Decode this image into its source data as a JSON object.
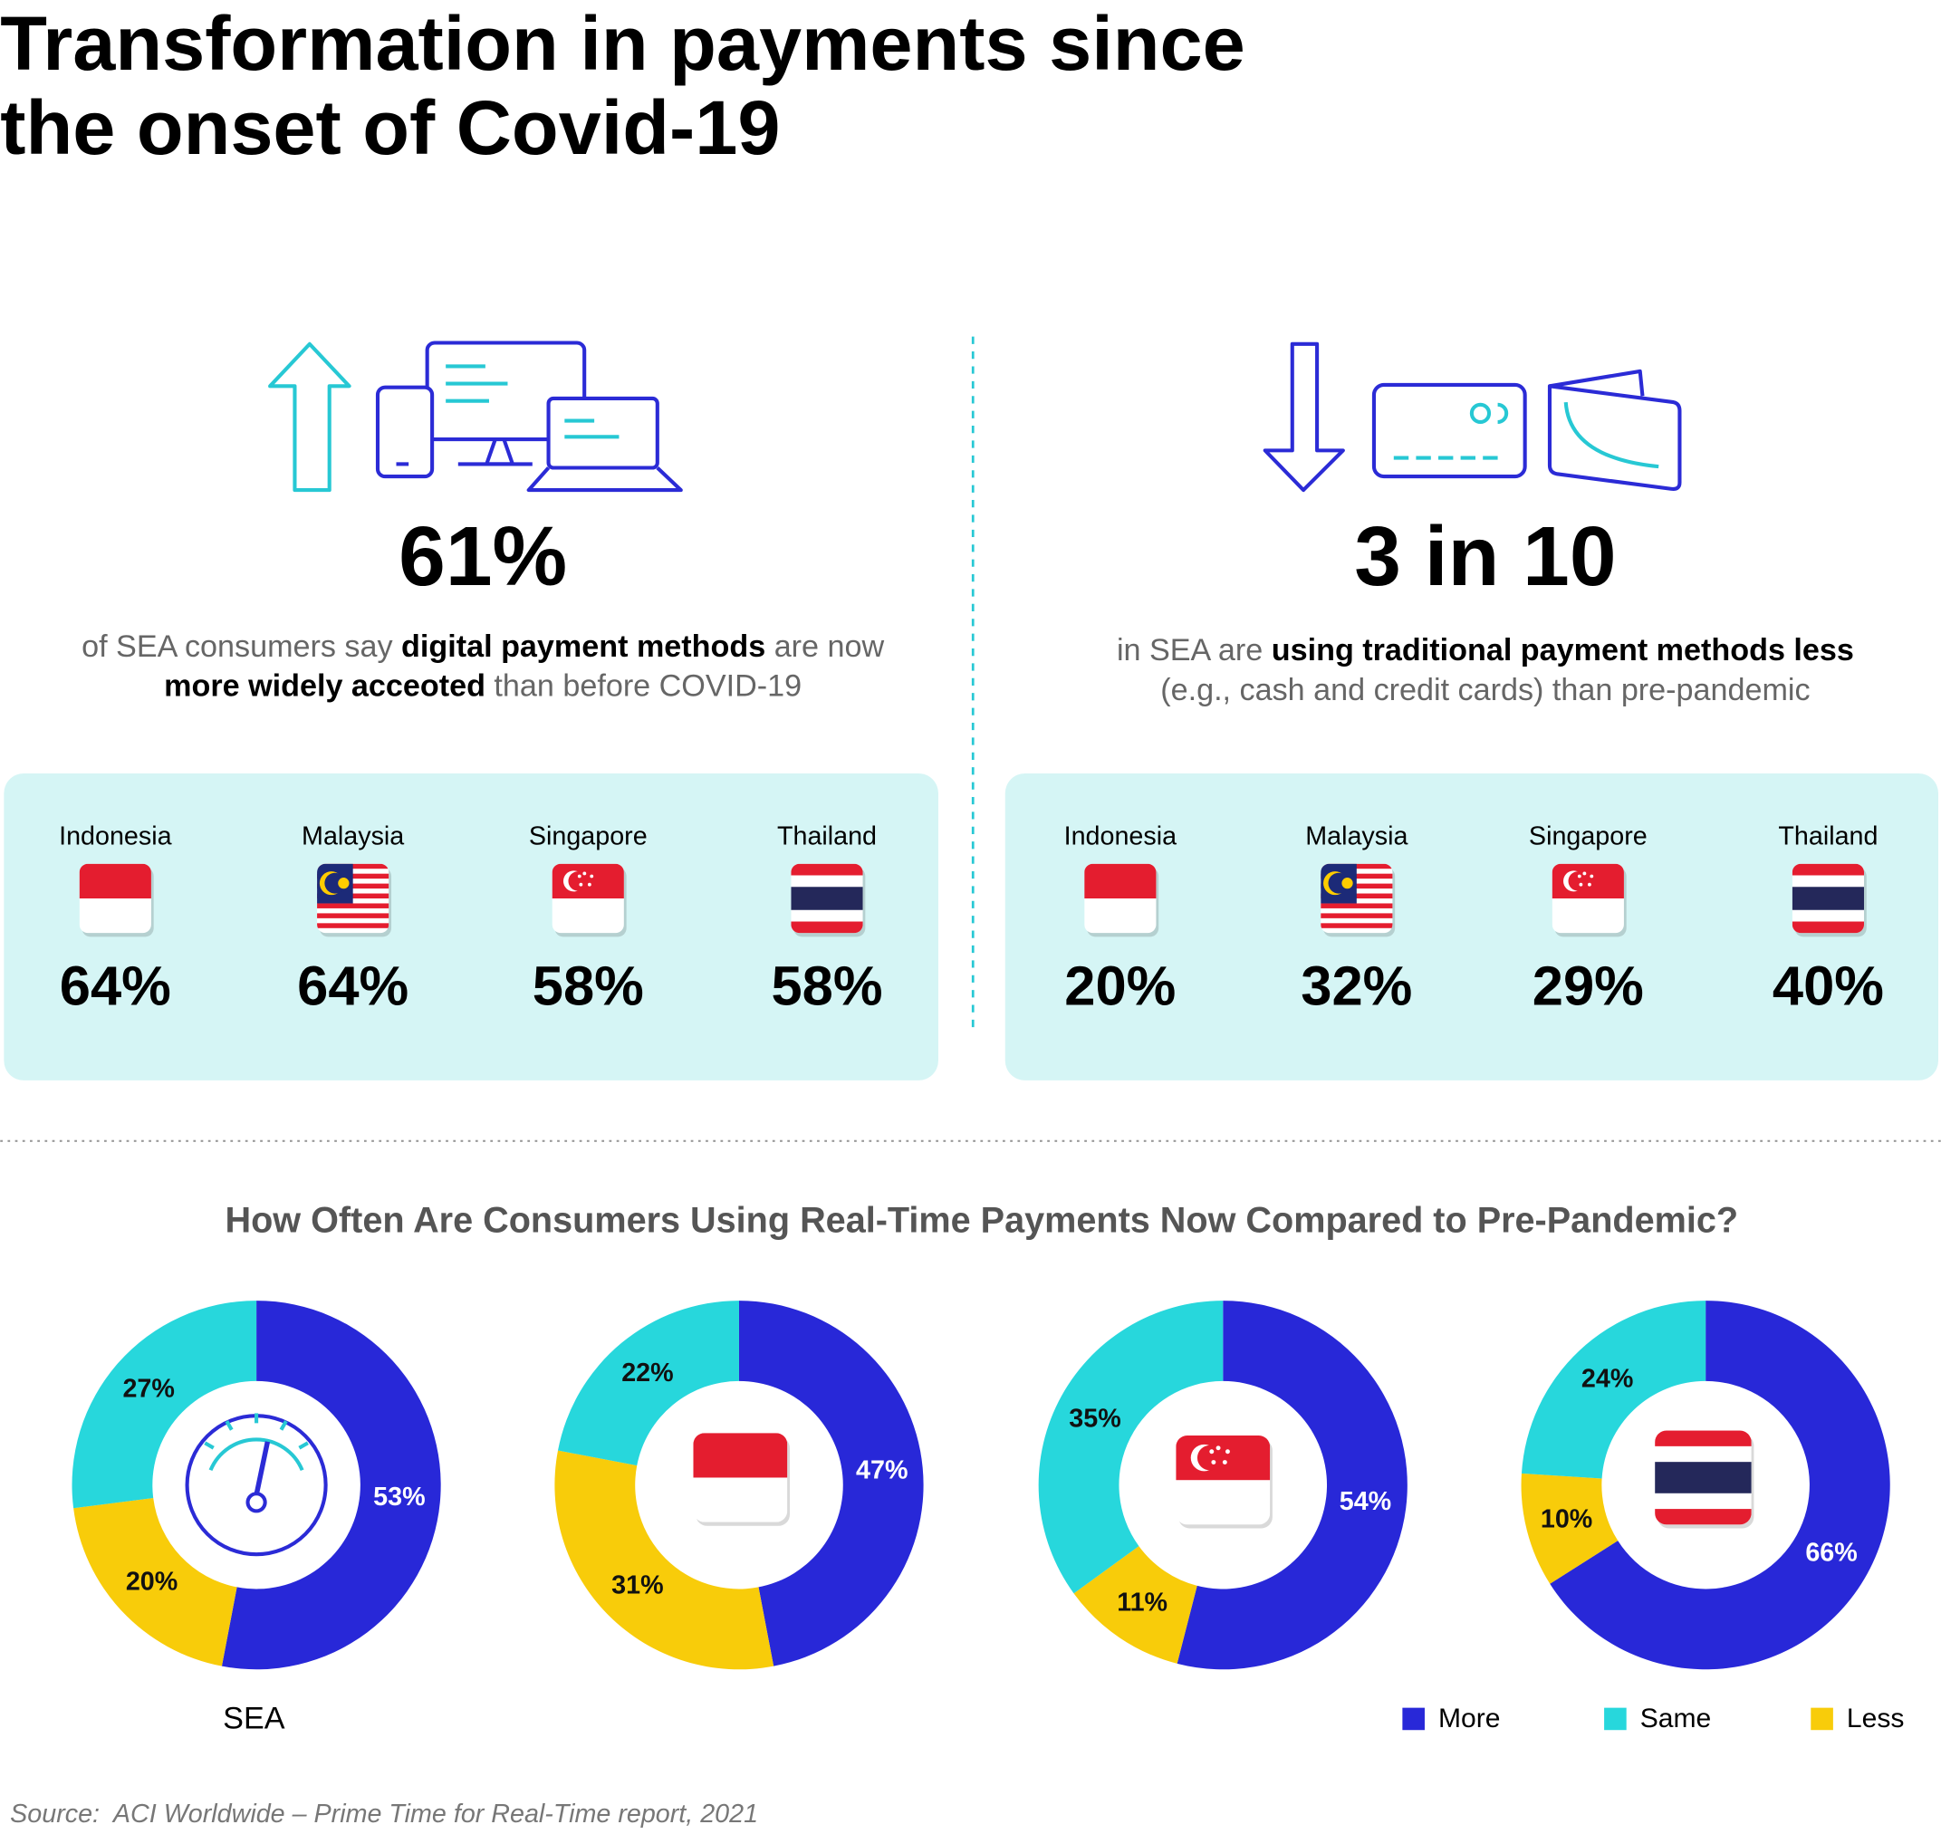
{
  "header": {
    "title_lines": [
      "Transformation in payments since",
      "the onset of Covid-19"
    ]
  },
  "panels": [
    {
      "stat": "61%",
      "description": [
        [
          {
            "text": "of SEA consumers say ",
            "bold": false
          },
          {
            "text": "digital payment methods",
            "bold": true
          },
          {
            "text": " are now",
            "bold": false
          }
        ],
        [
          {
            "text": "more widely acceoted",
            "bold": true
          },
          {
            "text": " than before COVID-19",
            "bold": false
          }
        ]
      ],
      "countries": [
        {
          "name": "Indonesia",
          "value": "64%"
        },
        {
          "name": "Malaysia",
          "value": "64%"
        },
        {
          "name": "Singapore",
          "value": "58%"
        },
        {
          "name": "Thailand",
          "value": "58%"
        }
      ]
    },
    {
      "stat": "3 in 10",
      "description": [
        [
          {
            "text": "in SEA are ",
            "bold": false
          },
          {
            "text": "using traditional payment methods less",
            "bold": true
          }
        ],
        [
          {
            "text": "(e.g., cash and credit cards) than pre-pandemic",
            "bold": false
          }
        ]
      ],
      "countries": [
        {
          "name": "Indonesia",
          "value": "20%"
        },
        {
          "name": "Malaysia",
          "value": "32%"
        },
        {
          "name": "Singapore",
          "value": "29%"
        },
        {
          "name": "Thailand",
          "value": "40%"
        }
      ]
    }
  ],
  "chart_data": {
    "type": "donut",
    "title": "How Often Are Consumers Using Real-Time Payments Now Compared to Pre-Pandemic?",
    "categories": [
      "SEA",
      null,
      null,
      null
    ],
    "series": [
      {
        "name": "More",
        "color": "#2828d8",
        "values": [
          53,
          47,
          54,
          66
        ],
        "value_labels": [
          "53%",
          "47%",
          "54%",
          "66%"
        ]
      },
      {
        "name": "Same",
        "color": "#27d7dc",
        "values": [
          27,
          22,
          35,
          24
        ],
        "value_labels": [
          "27%",
          "22%",
          "35%",
          "24%"
        ]
      },
      {
        "name": "Less",
        "color": "#f8cc0a",
        "values": [
          20,
          31,
          11,
          10
        ],
        "value_labels": [
          "20%",
          "31%",
          "11%",
          "10%"
        ]
      }
    ]
  },
  "footer": {
    "source": "Source:  ACI Worldwide – Prime Time for Real-Time report, 2021"
  }
}
